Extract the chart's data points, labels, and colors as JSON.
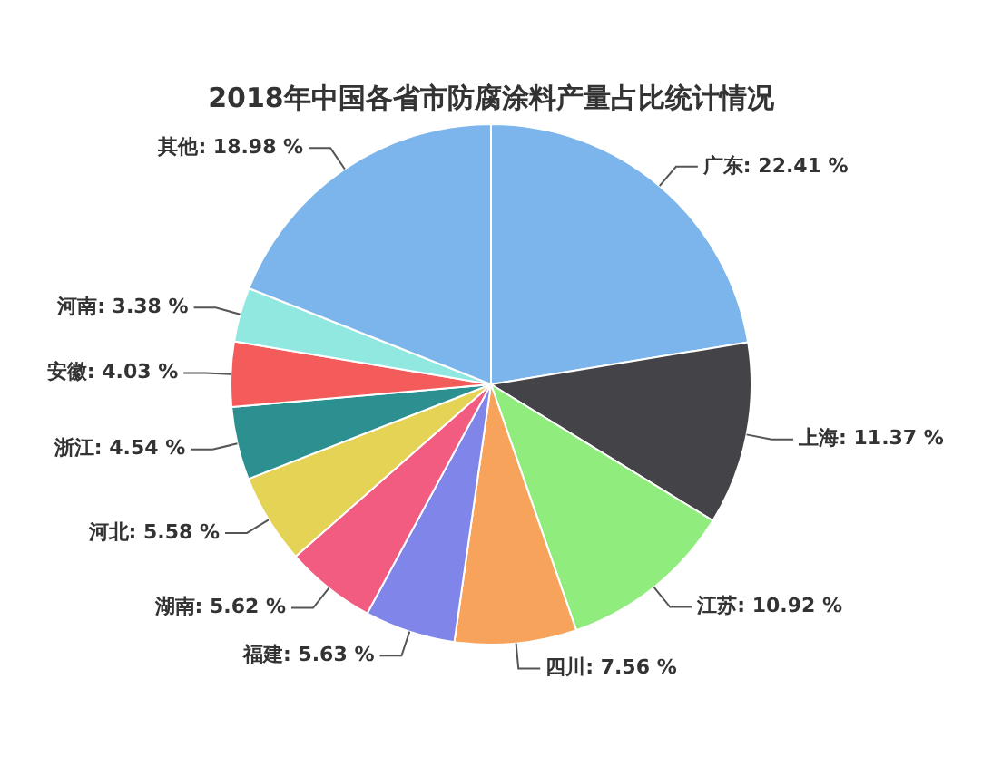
{
  "chart_data": {
    "type": "pie",
    "title": "2018年中国各省市防腐涂料产量占比统计情况",
    "categories": [
      "广东",
      "上海",
      "江苏",
      "四川",
      "福建",
      "湖南",
      "河北",
      "浙江",
      "安徽",
      "河南",
      "其他"
    ],
    "values": [
      22.41,
      11.37,
      10.92,
      7.56,
      5.63,
      5.62,
      5.58,
      4.54,
      4.03,
      3.38,
      18.98
    ],
    "value_labels": [
      "22.41 %",
      "11.37 %",
      "10.92 %",
      "7.56 %",
      "5.63 %",
      "5.62 %",
      "5.58 %",
      "4.54 %",
      "4.03 %",
      "3.38 %",
      "18.98 %"
    ],
    "colors": [
      "#7cb5ec",
      "#434348",
      "#90ed7d",
      "#f7a35c",
      "#8085e9",
      "#f15c80",
      "#e4d354",
      "#2b908f",
      "#f45b5b",
      "#91e8e1",
      "#7cb5ec"
    ]
  }
}
